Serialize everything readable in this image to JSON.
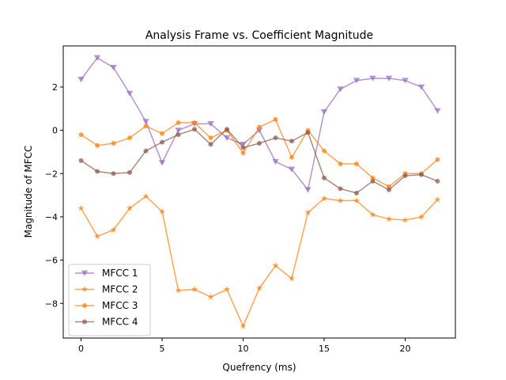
{
  "chart_data": {
    "type": "line",
    "title": "Analysis Frame vs. Coefficient Magnitude",
    "xlabel": "Quefrency (ms)",
    "ylabel": "Magnitude of MFCC",
    "xlim": [
      -1.1,
      23.1
    ],
    "ylim": [
      -9.6,
      3.9
    ],
    "xticks": [
      0,
      5,
      10,
      15,
      20
    ],
    "yticks": [
      2,
      0,
      -2,
      -4,
      -6,
      -8
    ],
    "grid": false,
    "legend_position": "lower-left",
    "x": [
      0,
      1,
      2,
      3,
      4,
      5,
      6,
      7,
      8,
      9,
      10,
      11,
      12,
      13,
      14,
      15,
      16,
      17,
      18,
      19,
      20,
      21,
      22
    ],
    "series": [
      {
        "name": "MFCC 1",
        "color": "#9467bd",
        "marker": "triangle-down",
        "values": [
          2.35,
          3.35,
          2.9,
          1.7,
          0.4,
          -1.5,
          0.0,
          0.3,
          0.3,
          -0.35,
          -0.65,
          0.0,
          -1.45,
          -1.8,
          -2.75,
          0.85,
          1.9,
          2.3,
          2.4,
          2.4,
          2.3,
          2.0,
          0.9
        ]
      },
      {
        "name": "MFCC 2",
        "color": "#ff7f0e",
        "marker": "star",
        "values": [
          -3.6,
          -4.9,
          -4.6,
          -3.6,
          -3.05,
          -3.75,
          -7.4,
          -7.35,
          -7.7,
          -7.35,
          -9.05,
          -7.3,
          -6.25,
          -6.85,
          -3.8,
          -3.15,
          -3.25,
          -3.25,
          -3.9,
          -4.1,
          -4.15,
          -4.0,
          -3.2
        ]
      },
      {
        "name": "MFCC 3",
        "color": "#ff7f0e",
        "marker": "circle",
        "values": [
          -0.2,
          -0.7,
          -0.6,
          -0.35,
          0.2,
          -0.15,
          0.35,
          0.35,
          -0.35,
          0.0,
          -1.05,
          0.15,
          0.5,
          -1.25,
          0.0,
          -0.95,
          -1.55,
          -1.55,
          -2.2,
          -2.6,
          -2.0,
          -2.0,
          -1.35
        ]
      },
      {
        "name": "MFCC 4",
        "color": "#8c564b",
        "marker": "circle",
        "values": [
          -1.4,
          -1.9,
          -2.0,
          -1.95,
          -0.95,
          -0.55,
          -0.2,
          0.05,
          -0.65,
          0.05,
          -0.8,
          -0.6,
          -0.35,
          -0.5,
          -0.1,
          -2.2,
          -2.7,
          -2.9,
          -2.35,
          -2.75,
          -2.1,
          -2.05,
          -2.35
        ]
      }
    ]
  }
}
